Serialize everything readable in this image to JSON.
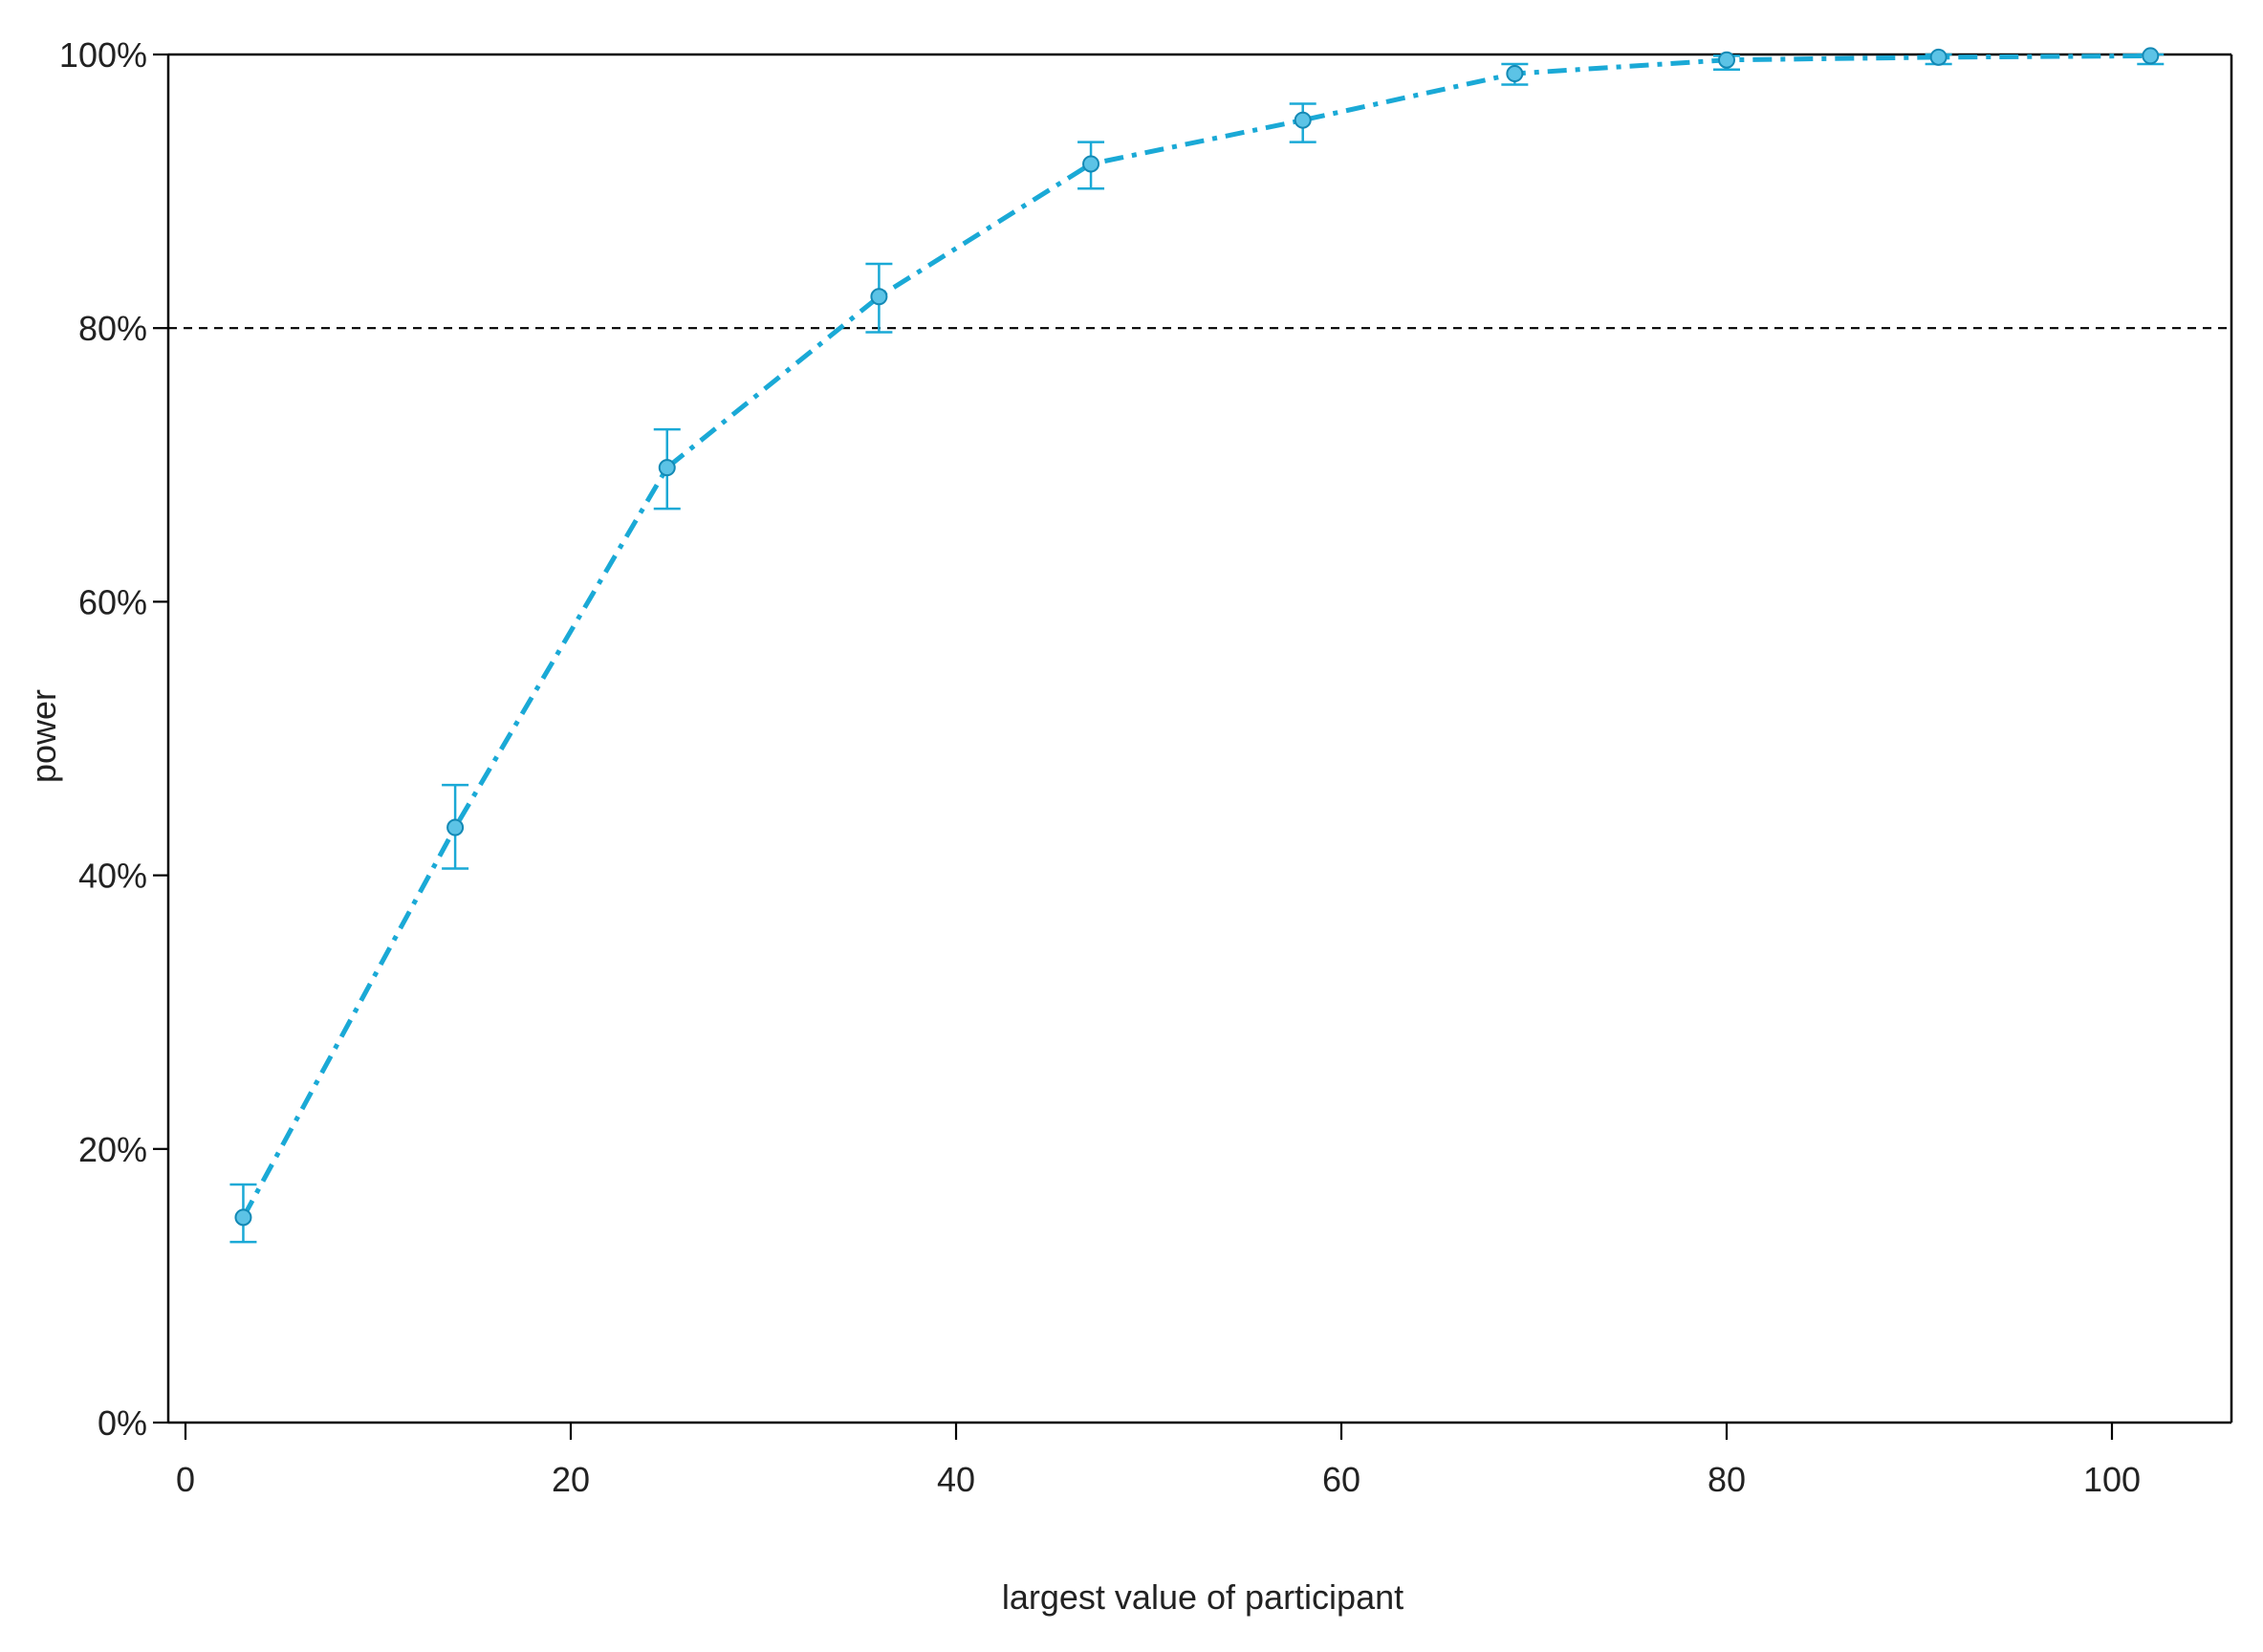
{
  "chart_data": {
    "type": "line",
    "title": "",
    "xlabel": "largest value of participant",
    "ylabel": "power",
    "xlim": [
      -1,
      106
    ],
    "ylim": [
      0,
      100
    ],
    "xticks": [
      0,
      20,
      40,
      60,
      80,
      100
    ],
    "xtick_labels": [
      "0",
      "20",
      "40",
      "60",
      "80",
      "100"
    ],
    "yticks": [
      0,
      20,
      40,
      60,
      80,
      100
    ],
    "ytick_labels": [
      "0%",
      "20%",
      "40%",
      "60%",
      "80%",
      "100%"
    ],
    "grid": false,
    "reference_line": {
      "y": 80,
      "style": "dashed",
      "color": "#000000"
    },
    "series": [
      {
        "color": "#1aa9d6",
        "marker_fill": "#5cc3e6",
        "line_style": "dash-dot",
        "x": [
          3,
          14,
          25,
          36,
          47,
          58,
          69,
          80,
          91,
          102
        ],
        "y": [
          15.0,
          43.5,
          69.8,
          82.3,
          92.0,
          95.2,
          98.6,
          99.6,
          99.8,
          99.9
        ],
        "ci_low": [
          13.2,
          40.5,
          66.8,
          79.7,
          90.2,
          93.6,
          97.8,
          98.9,
          99.3,
          99.3
        ],
        "ci_high": [
          17.4,
          46.6,
          72.6,
          84.7,
          93.6,
          96.4,
          99.3,
          99.9,
          100.0,
          100.0
        ]
      }
    ]
  }
}
